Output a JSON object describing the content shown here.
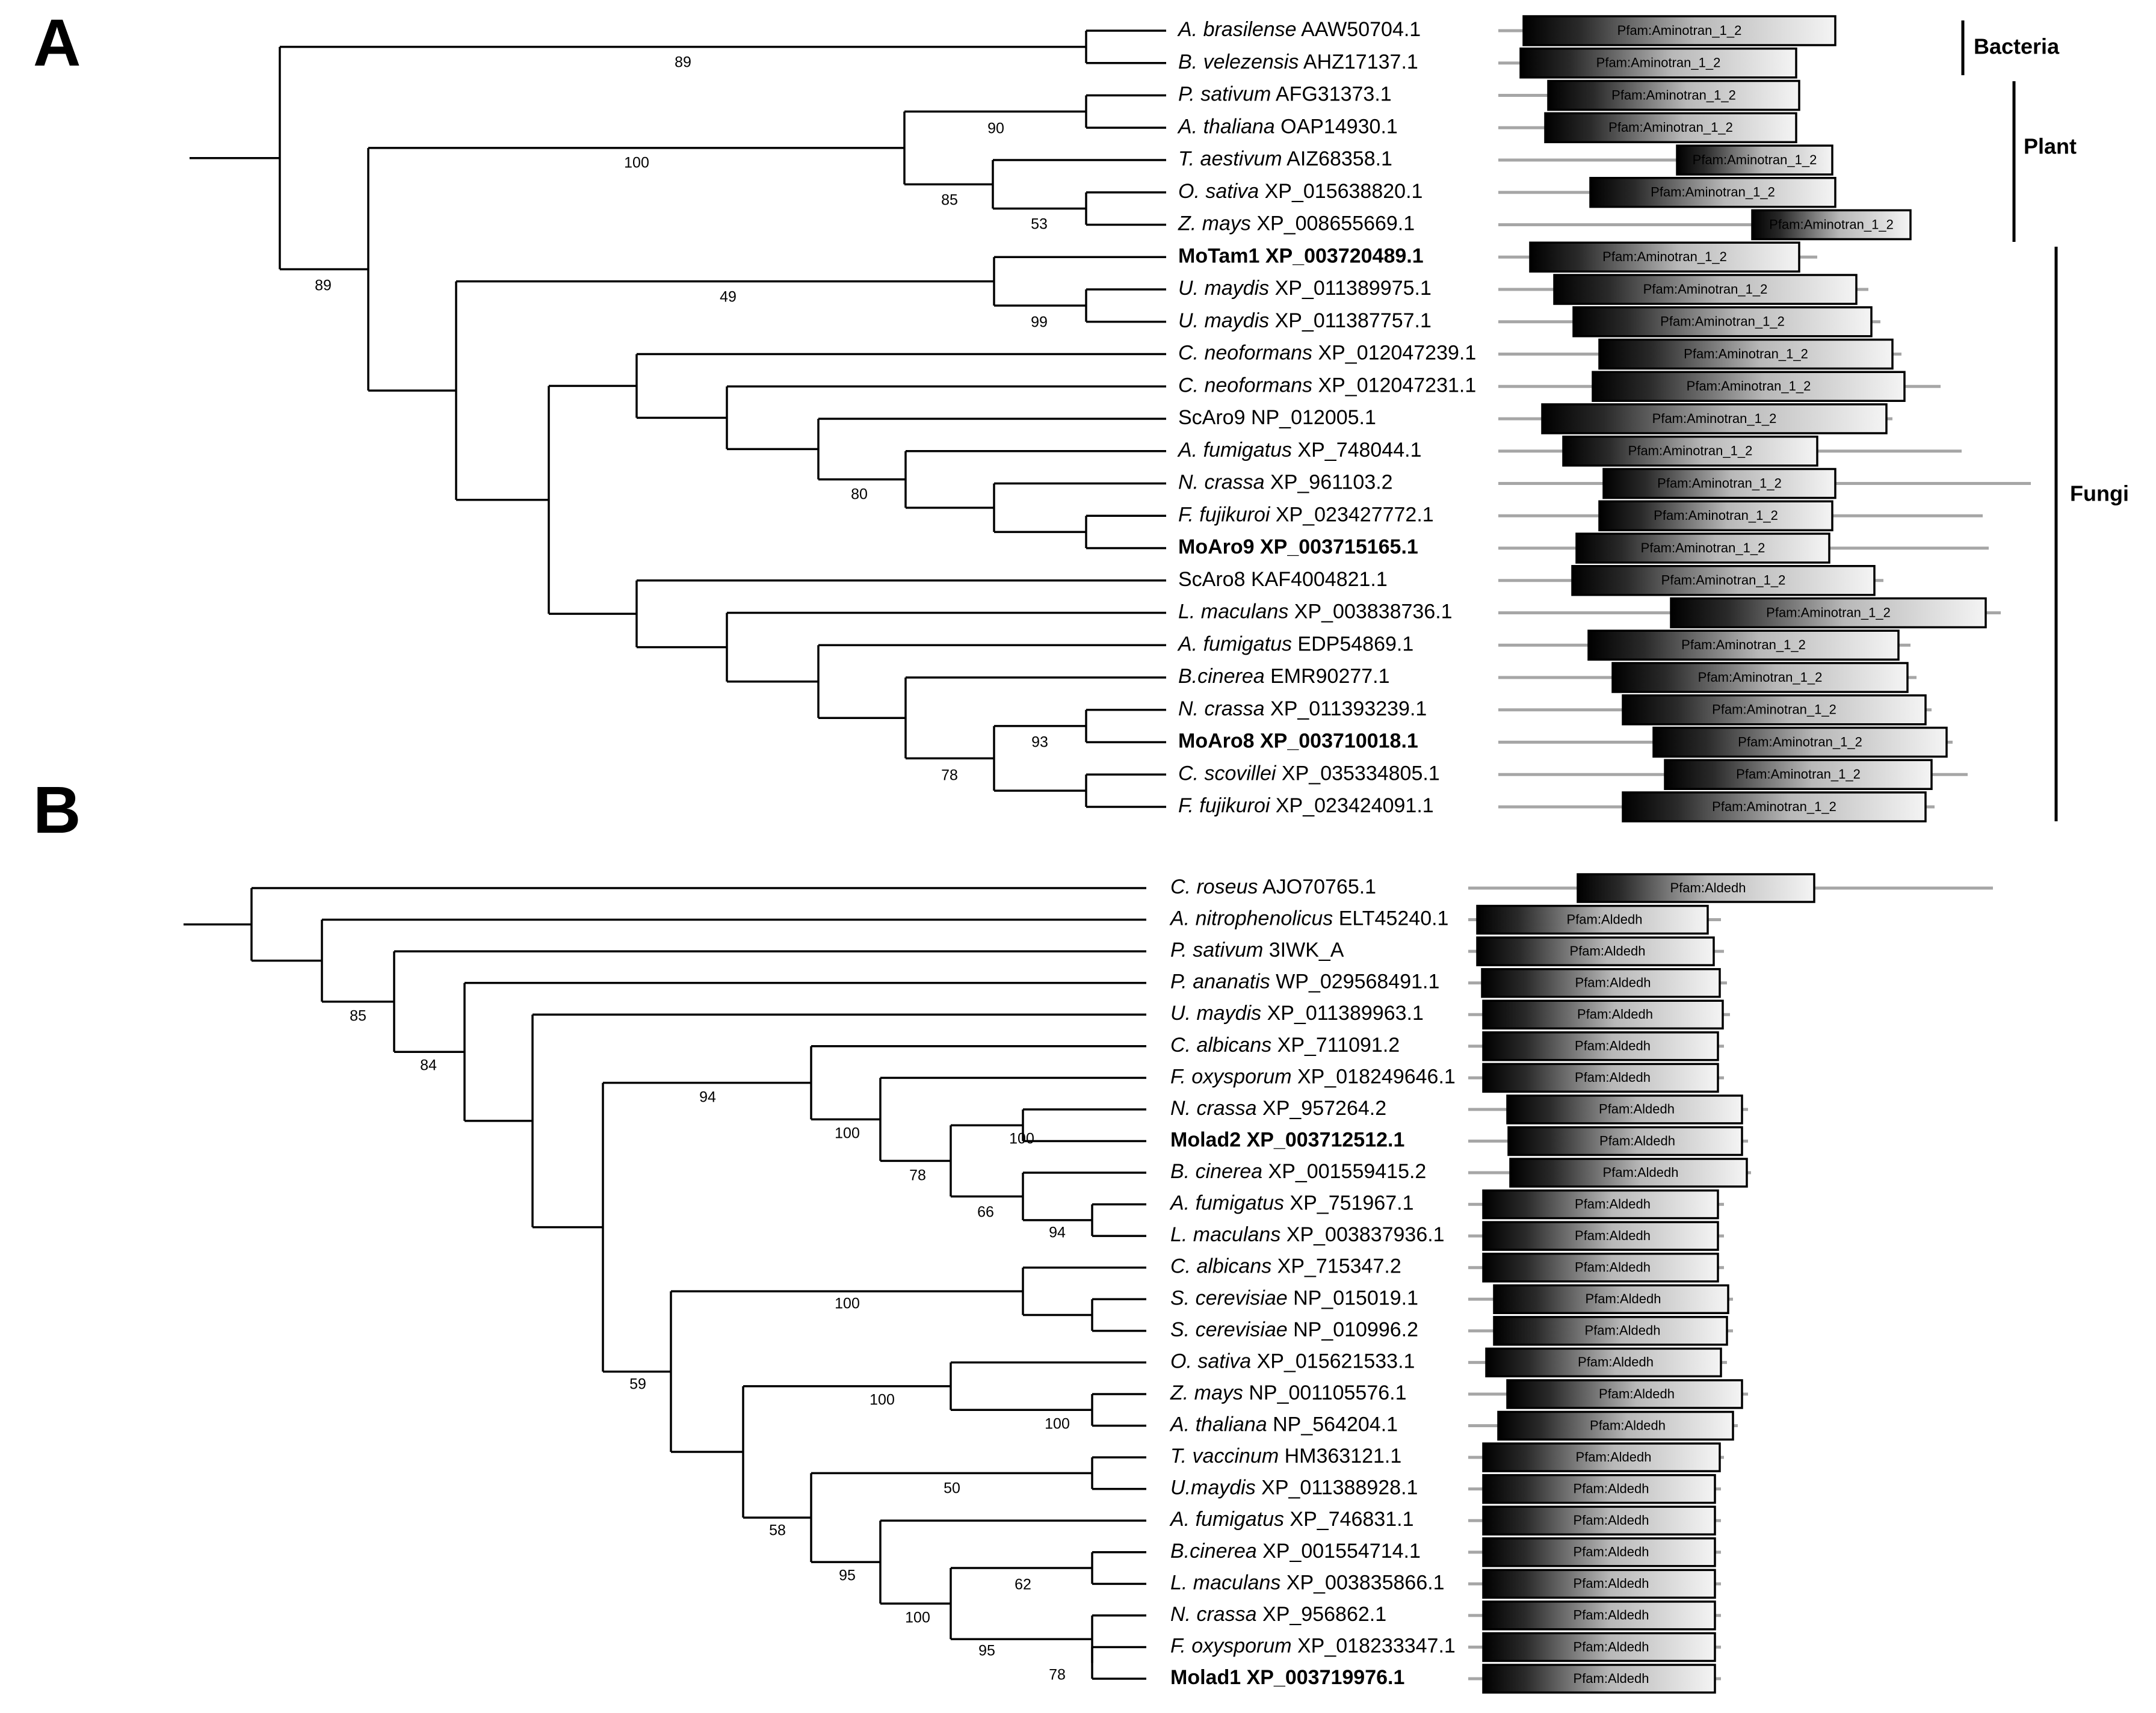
{
  "figure": {
    "panels": [
      {
        "letter": "A",
        "domain": "Pfam:Aminotran_1_2",
        "taxa": [
          {
            "genus": "A. brasilense",
            "accession": "AAW50704.1",
            "bold": false
          },
          {
            "genus": "B. velezensis",
            "accession": "AHZ17137.1",
            "bold": false
          },
          {
            "genus": "P. sativum",
            "accession": "AFG31373.1",
            "bold": false
          },
          {
            "genus": "A. thaliana",
            "accession": "OAP14930.1",
            "bold": false
          },
          {
            "genus": "T. aestivum",
            "accession": "AIZ68358.1",
            "bold": false
          },
          {
            "genus": "O. sativa",
            "accession": "XP_015638820.1",
            "bold": false
          },
          {
            "genus": "Z. mays",
            "accession": "XP_008655669.1",
            "bold": false
          },
          {
            "genus": "MoTam1",
            "accession": "XP_003720489.1",
            "bold": true
          },
          {
            "genus": "U. maydis",
            "accession": "XP_011389975.1",
            "bold": false
          },
          {
            "genus": "U. maydis",
            "accession": "XP_011387757.1",
            "bold": false
          },
          {
            "genus": "C. neoformans",
            "accession": "XP_012047239.1",
            "bold": false
          },
          {
            "genus": "C. neoformans",
            "accession": "XP_012047231.1",
            "bold": false
          },
          {
            "genus": "ScAro9",
            "accession": "NP_012005.1",
            "bold": false
          },
          {
            "genus": "A. fumigatus",
            "accession": "XP_748044.1",
            "bold": false
          },
          {
            "genus": "N. crassa",
            "accession": "XP_961103.2",
            "bold": false
          },
          {
            "genus": "F. fujikuroi",
            "accession": "XP_023427772.1",
            "bold": false
          },
          {
            "genus": "MoAro9",
            "accession": "XP_003715165.1",
            "bold": true
          },
          {
            "genus": "ScAro8",
            "accession": "KAF4004821.1",
            "bold": false
          },
          {
            "genus": "L. maculans",
            "accession": "XP_003838736.1",
            "bold": false
          },
          {
            "genus": "A. fumigatus",
            "accession": "EDP54869.1",
            "bold": false
          },
          {
            "genus": "B.cinerea",
            "accession": "EMR90277.1",
            "bold": false
          },
          {
            "genus": "N. crassa",
            "accession": "XP_011393239.1",
            "bold": false
          },
          {
            "genus": "MoAro8",
            "accession": "XP_003710018.1",
            "bold": true
          },
          {
            "genus": "C. scovillei",
            "accession": "XP_035334805.1",
            "bold": false
          },
          {
            "genus": "F. fujikuroi",
            "accession": "XP_023424091.1",
            "bold": false
          }
        ],
        "bootstrap": [
          "89",
          "90",
          "100",
          "85",
          "53",
          "89",
          "49",
          "99",
          "80",
          "93",
          "78"
        ],
        "clades": [
          "Bacteria",
          "Plant",
          "Fungi"
        ]
      },
      {
        "letter": "B",
        "domain": "Pfam:Aldedh",
        "taxa": [
          {
            "genus": "C. roseus",
            "accession": "AJO70765.1",
            "bold": false
          },
          {
            "genus": "A. nitrophenolicus",
            "accession": "ELT45240.1",
            "bold": false
          },
          {
            "genus": "P. sativum",
            "accession": "3IWK_A",
            "bold": false
          },
          {
            "genus": "P. ananatis",
            "accession": "WP_029568491.1",
            "bold": false
          },
          {
            "genus": "U. maydis",
            "accession": "XP_011389963.1",
            "bold": false
          },
          {
            "genus": "C. albicans",
            "accession": "XP_711091.2",
            "bold": false
          },
          {
            "genus": "F. oxysporum",
            "accession": "XP_018249646.1",
            "bold": false
          },
          {
            "genus": "N. crassa",
            "accession": "XP_957264.2",
            "bold": false
          },
          {
            "genus": "Molad2",
            "accession": "XP_003712512.1",
            "bold": true
          },
          {
            "genus": "B. cinerea",
            "accession": "XP_001559415.2",
            "bold": false
          },
          {
            "genus": "A. fumigatus",
            "accession": "XP_751967.1",
            "bold": false
          },
          {
            "genus": "L. maculans",
            "accession": "XP_003837936.1",
            "bold": false
          },
          {
            "genus": "C. albicans",
            "accession": "XP_715347.2",
            "bold": false
          },
          {
            "genus": "S. cerevisiae",
            "accession": "NP_015019.1",
            "bold": false
          },
          {
            "genus": "S. cerevisiae",
            "accession": "NP_010996.2",
            "bold": false
          },
          {
            "genus": "O. sativa",
            "accession": "XP_015621533.1",
            "bold": false
          },
          {
            "genus": "Z. mays",
            "accession": "NP_001105576.1",
            "bold": false
          },
          {
            "genus": "A. thaliana",
            "accession": "NP_564204.1",
            "bold": false
          },
          {
            "genus": "T. vaccinum",
            "accession": "HM363121.1",
            "bold": false
          },
          {
            "genus": "U.maydis",
            "accession": "XP_011388928.1",
            "bold": false
          },
          {
            "genus": "A. fumigatus",
            "accession": "XP_746831.1",
            "bold": false
          },
          {
            "genus": "B.cinerea",
            "accession": "XP_001554714.1",
            "bold": false
          },
          {
            "genus": "L. maculans",
            "accession": "XP_003835866.1",
            "bold": false
          },
          {
            "genus": "N. crassa",
            "accession": "XP_956862.1",
            "bold": false
          },
          {
            "genus": "F. oxysporum",
            "accession": "XP_018233347.1",
            "bold": false
          },
          {
            "genus": "Molad1",
            "accession": "XP_003719976.1",
            "bold": true
          }
        ],
        "bootstrap": [
          "85",
          "84",
          "94",
          "100",
          "100",
          "78",
          "66",
          "94",
          "100",
          "59",
          "100",
          "100",
          "50",
          "58",
          "95",
          "62",
          "100",
          "95",
          "78"
        ]
      }
    ]
  }
}
